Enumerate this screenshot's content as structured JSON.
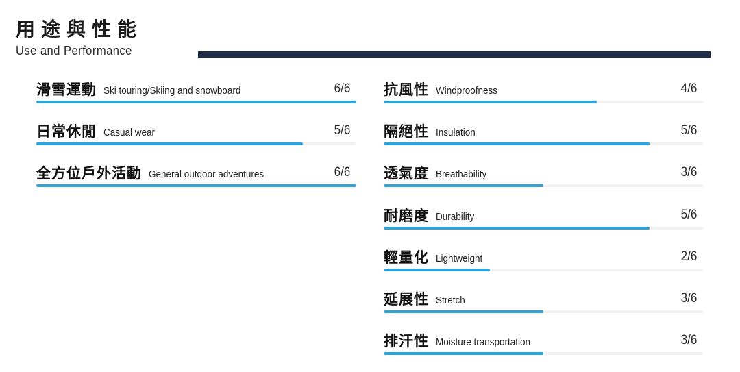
{
  "header": {
    "title_zh": "用途與性能",
    "title_en": "Use and Performance"
  },
  "colors": {
    "accent": "#2ea3dc",
    "rule": "#1f2e48",
    "track": "#f2f2f2"
  },
  "uses": [
    {
      "label_zh": "滑雪運動",
      "label_en": "Ski touring/Skiing and snowboard",
      "score_text": "6/6",
      "level": 1.0
    },
    {
      "label_zh": "日常休閒",
      "label_en": "Casual wear",
      "score_text": "5/6",
      "level": 0.8333
    },
    {
      "label_zh": "全方位戶外活動",
      "label_en": "General outdoor adventures",
      "score_text": "6/6",
      "level": 1.0
    }
  ],
  "performance": [
    {
      "label_zh": "抗風性",
      "label_en": "Windproofness",
      "score_text": "4/6",
      "level": 0.6667
    },
    {
      "label_zh": "隔絕性",
      "label_en": "Insulation",
      "score_text": "5/6",
      "level": 0.8333
    },
    {
      "label_zh": "透氣度",
      "label_en": "Breathability",
      "score_text": "3/6",
      "level": 0.5
    },
    {
      "label_zh": "耐磨度",
      "label_en": "Durability",
      "score_text": "5/6",
      "level": 0.8333
    },
    {
      "label_zh": "輕量化",
      "label_en": "Lightweight",
      "score_text": "2/6",
      "level": 0.3333
    },
    {
      "label_zh": "延展性",
      "label_en": "Stretch",
      "score_text": "3/6",
      "level": 0.5
    },
    {
      "label_zh": "排汗性",
      "label_en": "Moisture transportation",
      "score_text": "3/6",
      "level": 0.5
    }
  ]
}
